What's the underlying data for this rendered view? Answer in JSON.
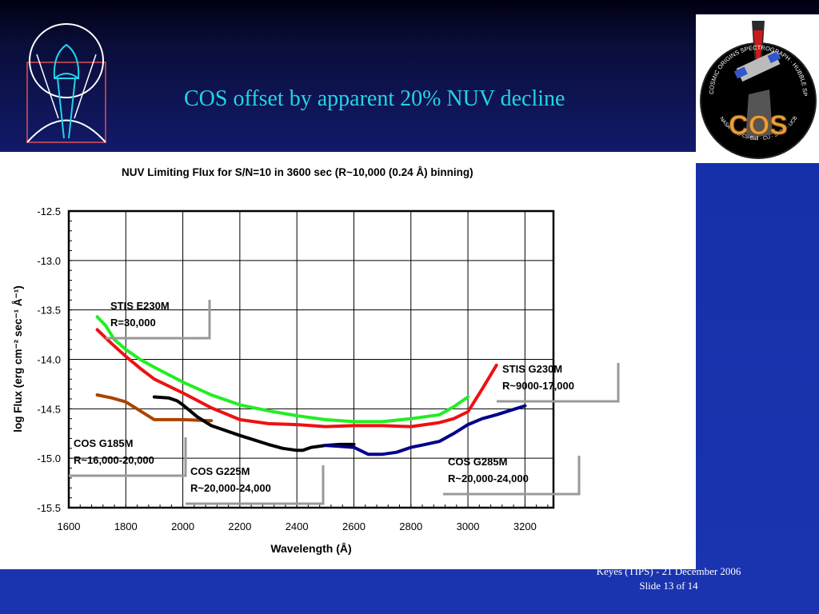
{
  "slide": {
    "title": "COS offset by apparent 20% NUV decline",
    "footer_line1": "Keyes (TIPS) - 21 December 2006",
    "footer_line2": "Slide 13 of  14"
  },
  "logo": {
    "text_arc": "COSMIC ORIGINS SPECTROGRAPH · HUBBLE SPACE TELESCOPE",
    "text_bottom": "NASA · GSFC · Ball · CU · STScI · UCB",
    "wordmark": "COS"
  },
  "chart_data": {
    "type": "line",
    "title": "NUV Limiting Flux for S/N=10 in 3600 sec (R~10,000 (0.24 Å) binning)",
    "xlabel": "Wavelength (Å)",
    "ylabel": "log Flux (erg cm⁻² sec⁻¹ Å⁻¹)",
    "xlim": [
      1600,
      3300
    ],
    "ylim": [
      -15.5,
      -12.5
    ],
    "x_ticks": [
      "1600",
      "1800",
      "2000",
      "2200",
      "2400",
      "2600",
      "2800",
      "3000",
      "3200"
    ],
    "y_ticks": [
      "-12.5",
      "-13.0",
      "-13.5",
      "-14.0",
      "-14.5",
      "-15.0",
      "-15.5"
    ],
    "grid": true,
    "series": [
      {
        "name": "STIS E230M",
        "color": "#22ee22",
        "x": [
          1700,
          1730,
          1760,
          1800,
          1850,
          1900,
          2000,
          2100,
          2200,
          2300,
          2400,
          2500,
          2600,
          2700,
          2800,
          2900,
          2950,
          3000
        ],
        "y": [
          -13.57,
          -13.66,
          -13.8,
          -13.9,
          -14.0,
          -14.08,
          -14.23,
          -14.36,
          -14.46,
          -14.52,
          -14.57,
          -14.61,
          -14.63,
          -14.63,
          -14.6,
          -14.56,
          -14.48,
          -14.38
        ]
      },
      {
        "name": "STIS G230M",
        "color": "#ee1111",
        "x": [
          1700,
          1750,
          1800,
          1850,
          1900,
          2000,
          2100,
          2200,
          2300,
          2400,
          2500,
          2600,
          2700,
          2800,
          2900,
          2950,
          3000,
          3050,
          3100
        ],
        "y": [
          -13.7,
          -13.84,
          -13.97,
          -14.09,
          -14.2,
          -14.34,
          -14.49,
          -14.61,
          -14.65,
          -14.66,
          -14.68,
          -14.67,
          -14.67,
          -14.68,
          -14.64,
          -14.6,
          -14.53,
          -14.3,
          -14.06
        ]
      },
      {
        "name": "COS G185M",
        "color": "#aa4400",
        "x": [
          1700,
          1750,
          1800,
          1850,
          1900,
          2000,
          2100
        ],
        "y": [
          -14.36,
          -14.39,
          -14.43,
          -14.52,
          -14.61,
          -14.61,
          -14.62
        ]
      },
      {
        "name": "COS G225M",
        "color": "#000000",
        "x": [
          1900,
          1950,
          1980,
          2000,
          2050,
          2100,
          2200,
          2300,
          2350,
          2400,
          2420,
          2450,
          2500,
          2550,
          2600
        ],
        "y": [
          -14.38,
          -14.39,
          -14.42,
          -14.46,
          -14.58,
          -14.67,
          -14.77,
          -14.86,
          -14.9,
          -14.92,
          -14.92,
          -14.89,
          -14.87,
          -14.86,
          -14.86
        ]
      },
      {
        "name": "COS G285M",
        "color": "#000088",
        "x": [
          2500,
          2550,
          2600,
          2650,
          2700,
          2750,
          2800,
          2850,
          2900,
          2950,
          3000,
          3050,
          3100,
          3200
        ],
        "y": [
          -14.87,
          -14.88,
          -14.89,
          -14.96,
          -14.96,
          -14.94,
          -14.89,
          -14.86,
          -14.83,
          -14.75,
          -14.66,
          -14.6,
          -14.56,
          -14.47
        ]
      }
    ],
    "annotations": [
      {
        "line1": "STIS E230M",
        "line2": "R=30,000"
      },
      {
        "line1": "STIS G230M",
        "line2": "R~9000-17,000"
      },
      {
        "line1": "COS G185M",
        "line2": "R~16,000-20,000"
      },
      {
        "line1": "COS G225M",
        "line2": "R~20,000-24,000"
      },
      {
        "line1": "COS G285M",
        "line2": "R~20,000-24,000"
      }
    ]
  }
}
